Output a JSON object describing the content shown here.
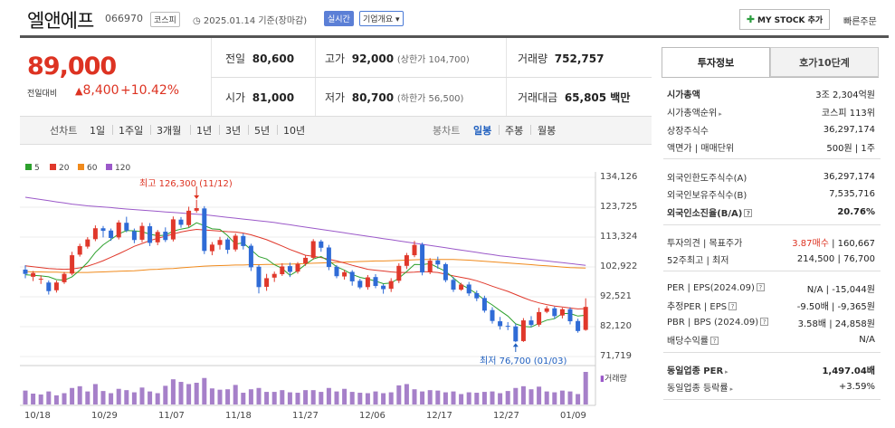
{
  "header": {
    "name": "엘앤에프",
    "code": "066970",
    "market": "코스피",
    "date": "2025.01.14 기준(장마감)",
    "live": "실시간",
    "company_info": "기업개요 ▾",
    "mystock": "MY STOCK 추가",
    "quick_order": "빠른주문"
  },
  "price": {
    "current": "89,000",
    "change_label": "전일대비",
    "change_arrow": "▲",
    "change": "8,400",
    "change_pct": "+10.42%"
  },
  "quote": {
    "prev_label": "전일",
    "prev": "80,600",
    "high_label": "고가",
    "high": "92,000",
    "upper_limit": "(상한가 104,700)",
    "volume_label": "거래량",
    "volume": "752,757",
    "open_label": "시가",
    "open": "81,000",
    "low_label": "저가",
    "low": "80,700",
    "lower_limit": "(하한가 56,500)",
    "amount_label": "거래대금",
    "amount": "65,805 백만"
  },
  "tabs": {
    "line": "선차트",
    "d1": "1일",
    "w1": "1주일",
    "m3": "3개월",
    "y1": "1년",
    "y3": "3년",
    "y5": "5년",
    "y10": "10년",
    "candle": "봉차트",
    "daily": "일봉",
    "weekly": "주봉",
    "monthly": "월봉"
  },
  "chart_data": {
    "type": "candlestick",
    "legend": [
      {
        "name": "5",
        "color": "#2ca02c"
      },
      {
        "name": "20",
        "color": "#e0382b"
      },
      {
        "name": "60",
        "color": "#f08a1c"
      },
      {
        "name": "120",
        "color": "#9b59c9"
      }
    ],
    "y_ticks": [
      "134,126",
      "123,725",
      "113,324",
      "102,922",
      "92,521",
      "82,120",
      "71,719"
    ],
    "x_ticks": [
      "10/18",
      "10/29",
      "11/07",
      "11/18",
      "11/27",
      "12/06",
      "12/17",
      "12/27",
      "01/09"
    ],
    "ylim": [
      71719,
      134126
    ],
    "high_annotation": "최고 126,300 (11/12)",
    "low_annotation": "최저 76,700 (01/03)",
    "volume_label": "거래량",
    "candles": [
      [
        102000,
        100500,
        103500,
        99000
      ],
      [
        99500,
        100800,
        101500,
        98000
      ],
      [
        98500,
        98800,
        100000,
        97000
      ],
      [
        97500,
        94500,
        98200,
        93300
      ],
      [
        94800,
        97500,
        98200,
        94000
      ],
      [
        97600,
        100500,
        101200,
        97000
      ],
      [
        100600,
        107000,
        108200,
        100000
      ],
      [
        107200,
        110200,
        111000,
        106500
      ],
      [
        110000,
        112500,
        113300,
        109300
      ],
      [
        112600,
        116400,
        117400,
        111900
      ],
      [
        116400,
        115500,
        117200,
        113200
      ],
      [
        115600,
        113000,
        116300,
        112000
      ],
      [
        113200,
        118400,
        119200,
        112500
      ],
      [
        118300,
        115600,
        120400,
        115000
      ],
      [
        115400,
        112300,
        116300,
        111200
      ],
      [
        112400,
        117200,
        118400,
        111500
      ],
      [
        117100,
        111300,
        118200,
        110200
      ],
      [
        111500,
        115100,
        115800,
        110500
      ],
      [
        115200,
        112300,
        116700,
        111600
      ],
      [
        112500,
        119500,
        120500,
        111800
      ],
      [
        119400,
        117600,
        120300,
        116600
      ],
      [
        117500,
        122500,
        123900,
        116800
      ],
      [
        122500,
        123400,
        126300,
        121800
      ],
      [
        123300,
        108500,
        124100,
        107400
      ],
      [
        108400,
        110700,
        111600,
        107000
      ],
      [
        110600,
        112300,
        113400,
        109000
      ],
      [
        112500,
        108900,
        113100,
        107500
      ],
      [
        109000,
        113800,
        114600,
        108300
      ],
      [
        113700,
        110200,
        114600,
        109000
      ],
      [
        110300,
        102800,
        111000,
        101500
      ],
      [
        103000,
        95900,
        103600,
        93700
      ],
      [
        96000,
        99000,
        100500,
        94600
      ],
      [
        99200,
        100500,
        101300,
        97700
      ],
      [
        100400,
        103100,
        104200,
        99800
      ],
      [
        103200,
        101200,
        104400,
        99400
      ],
      [
        101300,
        104000,
        104600,
        100600
      ],
      [
        104100,
        106100,
        107000,
        103300
      ],
      [
        106100,
        111900,
        112600,
        105500
      ],
      [
        111800,
        109600,
        112400,
        108200
      ],
      [
        109700,
        102900,
        110600,
        101800
      ],
      [
        103000,
        99700,
        103600,
        99000
      ],
      [
        99600,
        101100,
        101900,
        98500
      ],
      [
        101200,
        97900,
        101800,
        96400
      ],
      [
        98100,
        95800,
        98800,
        95200
      ],
      [
        95900,
        99300,
        100100,
        95000
      ],
      [
        99400,
        96300,
        100400,
        95500
      ],
      [
        96400,
        95200,
        97000,
        93600
      ],
      [
        95300,
        98000,
        99000,
        94200
      ],
      [
        98100,
        103300,
        104200,
        97300
      ],
      [
        103300,
        107000,
        107800,
        102200
      ],
      [
        107000,
        110600,
        112000,
        106300
      ],
      [
        110700,
        101000,
        111400,
        100000
      ],
      [
        101100,
        105100,
        106000,
        100400
      ],
      [
        105200,
        103800,
        106500,
        102300
      ],
      [
        103900,
        98300,
        104400,
        97600
      ],
      [
        98400,
        95000,
        99400,
        94200
      ],
      [
        95000,
        96800,
        97400,
        94600
      ],
      [
        96800,
        93700,
        97700,
        92800
      ],
      [
        93800,
        92000,
        94700,
        91000
      ],
      [
        92100,
        87700,
        92900,
        87000
      ],
      [
        87900,
        84100,
        88900,
        83200
      ],
      [
        84000,
        82300,
        85500,
        81100
      ],
      [
        82400,
        82100,
        83700,
        80900
      ],
      [
        82200,
        77000,
        83200,
        76700
      ],
      [
        77100,
        84300,
        85100,
        76800
      ],
      [
        84300,
        82700,
        85800,
        81900
      ],
      [
        82800,
        87200,
        88700,
        82100
      ],
      [
        87300,
        88500,
        89300,
        86800
      ],
      [
        88500,
        85800,
        89100,
        84800
      ],
      [
        86000,
        88200,
        88700,
        85000
      ],
      [
        88200,
        84000,
        88900,
        82900
      ],
      [
        84100,
        80600,
        84900,
        80000
      ],
      [
        81000,
        89000,
        92000,
        80700
      ]
    ],
    "ma5": [
      100200,
      100000,
      99800,
      99500,
      98500,
      98300,
      99500,
      101800,
      104500,
      108000,
      110600,
      112500,
      114400,
      115600,
      115500,
      115200,
      114300,
      113800,
      114000,
      115400,
      116100,
      116600,
      118300,
      117300,
      116200,
      116000,
      113800,
      110900,
      111300,
      108900,
      106500,
      105700,
      103700,
      102400,
      100000,
      101600,
      103800,
      105700,
      106500,
      105000,
      103000,
      101800,
      100300,
      99300,
      98700,
      98000,
      97100,
      97300,
      99000,
      101300,
      103800,
      103700,
      104100,
      102700,
      101400,
      99100,
      96800,
      95300,
      93600,
      91400,
      89700,
      87700,
      85800,
      83100,
      82200,
      82000,
      83300,
      84400,
      84900,
      86700,
      86700,
      85800,
      86100
    ],
    "ma20": [
      103300,
      103000,
      102700,
      102400,
      102200,
      102100,
      102200,
      102600,
      103200,
      104100,
      105100,
      106300,
      107500,
      108800,
      110100,
      111100,
      112100,
      112900,
      113600,
      114400,
      115100,
      115600,
      116000,
      115800,
      115600,
      115400,
      115200,
      115100,
      114700,
      114100,
      113300,
      112400,
      111300,
      110200,
      109000,
      108000,
      107000,
      106600,
      106200,
      105600,
      105000,
      104300,
      103500,
      102800,
      102100,
      101800,
      101500,
      101200,
      101000,
      101000,
      101100,
      101300,
      101200,
      101000,
      100400,
      99800,
      99300,
      98800,
      98100,
      97200,
      96200,
      95300,
      94400,
      93300,
      92200,
      91200,
      90400,
      89800,
      89300,
      89000,
      88600,
      88300,
      88400
    ],
    "ma60": [
      101300,
      101200,
      101200,
      101100,
      101100,
      101000,
      101000,
      101000,
      101000,
      101100,
      101200,
      101300,
      101400,
      101500,
      101600,
      101800,
      102000,
      102100,
      102300,
      102400,
      102600,
      102800,
      103000,
      103200,
      103300,
      103400,
      103500,
      103600,
      103600,
      103700,
      103700,
      103800,
      103800,
      103900,
      103900,
      104000,
      104100,
      104200,
      104300,
      104400,
      104500,
      104600,
      104700,
      104800,
      104900,
      105000,
      105000,
      105100,
      105200,
      105300,
      105400,
      105500,
      105500,
      105500,
      105500,
      105500,
      105400,
      105300,
      105100,
      104900,
      104700,
      104500,
      104300,
      104100,
      103900,
      103700,
      103500,
      103300,
      103100,
      102900,
      102700,
      102600,
      102500
    ],
    "ma120": [
      127200,
      126800,
      126400,
      126000,
      125600,
      125200,
      124800,
      124500,
      124200,
      124000,
      123800,
      123600,
      123300,
      123100,
      122900,
      122700,
      122500,
      122300,
      122100,
      121900,
      121700,
      121500,
      121300,
      121100,
      120800,
      120500,
      120200,
      119900,
      119600,
      119300,
      119000,
      118700,
      118400,
      118000,
      117600,
      117200,
      116800,
      116400,
      116000,
      115600,
      115200,
      114800,
      114400,
      114000,
      113600,
      113200,
      112800,
      112400,
      112000,
      111600,
      111200,
      110800,
      110400,
      110000,
      109600,
      109200,
      108800,
      108400,
      108000,
      107600,
      107200,
      106800,
      106500,
      106200,
      105900,
      105600,
      105300,
      105000,
      104700,
      104400,
      104100,
      103800,
      103500
    ],
    "volume": [
      320,
      250,
      230,
      300,
      210,
      260,
      380,
      420,
      300,
      470,
      310,
      260,
      360,
      330,
      280,
      390,
      300,
      260,
      430,
      580,
      520,
      470,
      500,
      610,
      370,
      340,
      350,
      450,
      270,
      350,
      380,
      290,
      290,
      330,
      280,
      270,
      330,
      330,
      290,
      380,
      300,
      360,
      290,
      270,
      260,
      300,
      260,
      280,
      440,
      470,
      350,
      300,
      330,
      320,
      280,
      300,
      240,
      280,
      270,
      290,
      300,
      260,
      310,
      380,
      420,
      350,
      410,
      300,
      280,
      320,
      300,
      240,
      750
    ]
  },
  "info": {
    "tab1": "투자정보",
    "tab2": "호가10단계",
    "cap_label": "시가총액",
    "cap": "3조 2,304억원",
    "rank_label": "시가총액순위",
    "rank": "코스피 113위",
    "shares_label": "상장주식수",
    "shares": "36,297,174",
    "par_label": "액면가 | 매매단위",
    "par": "500원 | 1주",
    "frn_limit_label": "외국인한도주식수(A)",
    "frn_limit": "36,297,174",
    "frn_hold_label": "외국인보유주식수(B)",
    "frn_hold": "7,535,716",
    "frn_ratio_label": "외국인소진율(B/A)",
    "frn_ratio": "20.76%",
    "opinion_label": "투자의견 | 목표주가",
    "opinion": "3.87매수",
    "target": "160,667",
    "w52_label": "52주최고 | 최저",
    "w52": "214,500 | 76,700",
    "per_label": "PER | EPS(2024.09)",
    "per": "N/A | -15,044원",
    "eper_label": "추정PER | EPS",
    "eper": "-9.50배 | -9,365원",
    "pbr_label": "PBR | BPS (2024.09)",
    "pbr": "3.58배 | 24,858원",
    "div_label": "배당수익률",
    "div": "N/A",
    "ind_per_label": "동일업종 PER",
    "ind_per": "1,497.04배",
    "ind_chg_label": "동일업종 등락률",
    "ind_chg": "+3.59%"
  }
}
